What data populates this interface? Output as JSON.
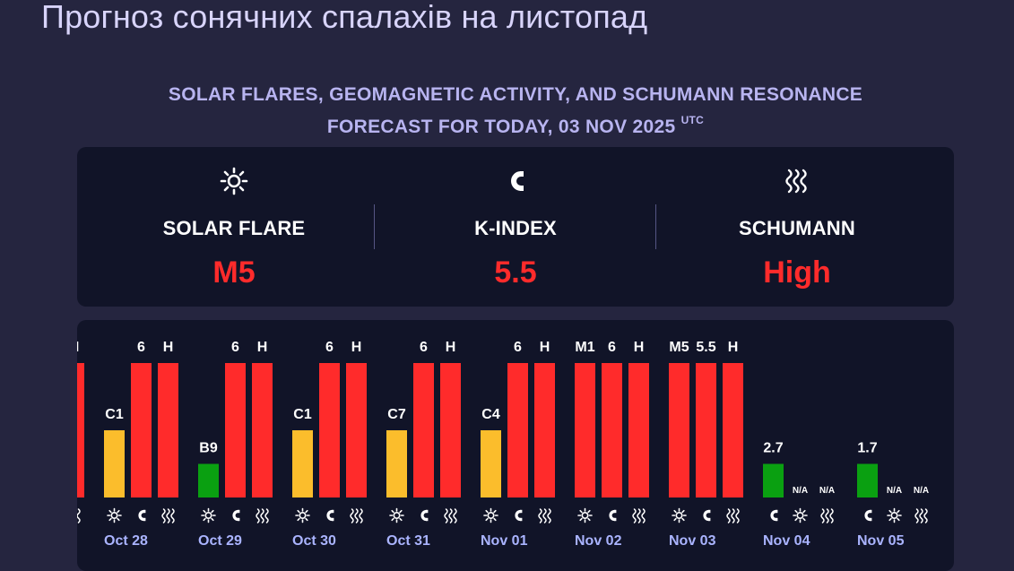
{
  "page": {
    "title": "Прогноз сонячних спалахів на листопад",
    "heading_line1": "SOLAR FLARES, GEOMAGNETIC ACTIVITY, AND SCHUMANN RESONANCE",
    "heading_line2": "FORECAST FOR TODAY, 03 NOV 2025",
    "heading_tz": "UTC"
  },
  "summary": {
    "solar_flare": {
      "label": "SOLAR FLARE",
      "value": "M5",
      "icon": "sun-icon"
    },
    "k_index": {
      "label": "K-INDEX",
      "value": "5.5",
      "icon": "magnet-icon"
    },
    "schumann": {
      "label": "SCHUMANN",
      "value": "High",
      "icon": "waves-icon"
    }
  },
  "colors": {
    "high": "#ff2b2b",
    "moderate": "#fbbd2c",
    "low": "#0aa011",
    "date": "#aab4ff"
  },
  "chart_data": {
    "type": "bar",
    "days": [
      {
        "date": "Oct 28",
        "bars": [
          {
            "kind": "flare",
            "label": "C1",
            "level": 0.5,
            "color": "#fbbd2c"
          },
          {
            "kind": "k",
            "label": "6",
            "level": 1.0,
            "color": "#ff2b2b"
          },
          {
            "kind": "schumann",
            "label": "H",
            "level": 1.0,
            "color": "#ff2b2b"
          }
        ]
      },
      {
        "date": "Oct 29",
        "bars": [
          {
            "kind": "flare",
            "label": "B9",
            "level": 0.25,
            "color": "#0aa011"
          },
          {
            "kind": "k",
            "label": "6",
            "level": 1.0,
            "color": "#ff2b2b"
          },
          {
            "kind": "schumann",
            "label": "H",
            "level": 1.0,
            "color": "#ff2b2b"
          }
        ]
      },
      {
        "date": "Oct 30",
        "bars": [
          {
            "kind": "flare",
            "label": "C1",
            "level": 0.5,
            "color": "#fbbd2c"
          },
          {
            "kind": "k",
            "label": "6",
            "level": 1.0,
            "color": "#ff2b2b"
          },
          {
            "kind": "schumann",
            "label": "H",
            "level": 1.0,
            "color": "#ff2b2b"
          }
        ]
      },
      {
        "date": "Oct 31",
        "bars": [
          {
            "kind": "flare",
            "label": "C7",
            "level": 0.5,
            "color": "#fbbd2c"
          },
          {
            "kind": "k",
            "label": "6",
            "level": 1.0,
            "color": "#ff2b2b"
          },
          {
            "kind": "schumann",
            "label": "H",
            "level": 1.0,
            "color": "#ff2b2b"
          }
        ]
      },
      {
        "date": "Nov 01",
        "bars": [
          {
            "kind": "flare",
            "label": "C4",
            "level": 0.5,
            "color": "#fbbd2c"
          },
          {
            "kind": "k",
            "label": "6",
            "level": 1.0,
            "color": "#ff2b2b"
          },
          {
            "kind": "schumann",
            "label": "H",
            "level": 1.0,
            "color": "#ff2b2b"
          }
        ]
      },
      {
        "date": "Nov 02",
        "bars": [
          {
            "kind": "flare",
            "label": "M1",
            "level": 1.0,
            "color": "#ff2b2b"
          },
          {
            "kind": "k",
            "label": "6",
            "level": 1.0,
            "color": "#ff2b2b"
          },
          {
            "kind": "schumann",
            "label": "H",
            "level": 1.0,
            "color": "#ff2b2b"
          }
        ]
      },
      {
        "date": "Nov 03",
        "bars": [
          {
            "kind": "flare",
            "label": "M5",
            "level": 1.0,
            "color": "#ff2b2b"
          },
          {
            "kind": "k",
            "label": "5.5",
            "level": 1.0,
            "color": "#ff2b2b"
          },
          {
            "kind": "schumann",
            "label": "H",
            "level": 1.0,
            "color": "#ff2b2b"
          }
        ]
      },
      {
        "date": "Nov 04",
        "bars": [
          {
            "kind": "k",
            "label": "2.7",
            "level": 0.25,
            "color": "#0aa011"
          },
          {
            "kind": "flare",
            "label": "N/A",
            "level": 0
          },
          {
            "kind": "schumann",
            "label": "N/A",
            "level": 0
          }
        ]
      },
      {
        "date": "Nov 05",
        "bars": [
          {
            "kind": "k",
            "label": "1.7",
            "level": 0.25,
            "color": "#0aa011"
          },
          {
            "kind": "flare",
            "label": "N/A",
            "level": 0
          },
          {
            "kind": "schumann",
            "label": "N/A",
            "level": 0
          }
        ]
      }
    ],
    "partial_left": {
      "kind": "schumann",
      "label": "H",
      "level": 1.0,
      "color": "#ff2b2b"
    }
  }
}
